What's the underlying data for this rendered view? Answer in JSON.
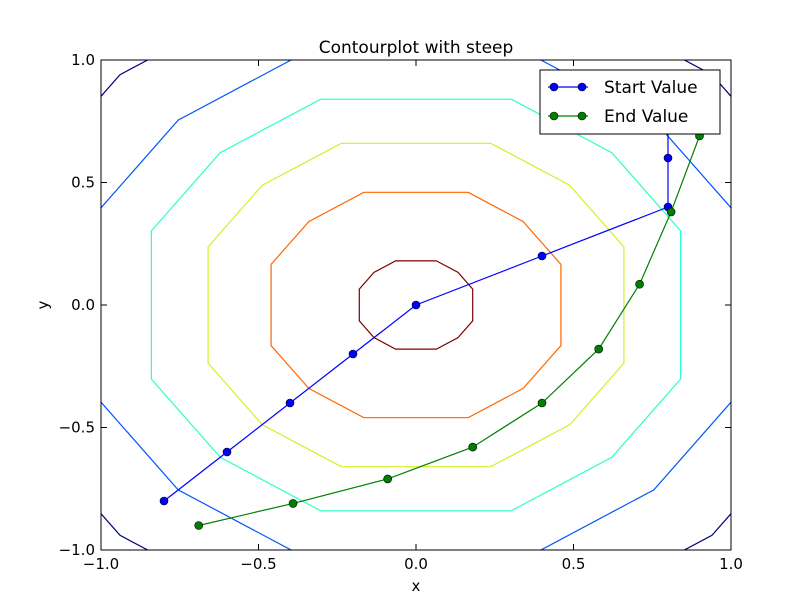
{
  "chart_data": {
    "type": "line",
    "title": "Contourplot with steep",
    "xlabel": "x",
    "ylabel": "y",
    "xlim": [
      -1.0,
      1.0
    ],
    "ylim": [
      -1.0,
      1.0
    ],
    "xticks": [
      -1.0,
      -0.5,
      0.0,
      0.5,
      1.0
    ],
    "yticks": [
      -1.0,
      -0.5,
      0.0,
      0.5,
      1.0
    ],
    "xtick_labels": [
      "−1.0",
      "−0.5",
      "0.0",
      "0.5",
      "1.0"
    ],
    "ytick_labels": [
      "−1.0",
      "−0.5",
      "0.0",
      "0.5",
      "1.0"
    ],
    "grid": false,
    "legend_position": "top-right",
    "series": [
      {
        "name": "Start Value",
        "color": "#0000ff",
        "marker": "circle",
        "x": [
          -0.8,
          -0.6,
          -0.4,
          -0.2,
          0.0,
          0.4,
          0.8,
          0.8,
          0.8
        ],
        "y": [
          -0.8,
          -0.6,
          -0.4,
          -0.2,
          0.0,
          0.2,
          0.4,
          0.6,
          0.93
        ]
      },
      {
        "name": "End Value",
        "color": "#008000",
        "marker": "circle",
        "x": [
          -0.69,
          -0.39,
          -0.09,
          0.18,
          0.4,
          0.58,
          0.71,
          0.81,
          0.9
        ],
        "y": [
          -0.9,
          -0.81,
          -0.71,
          -0.58,
          -0.4,
          -0.18,
          0.085,
          0.38,
          0.69
        ]
      }
    ],
    "contours": [
      {
        "radius": 0.18,
        "color": "#7f0000"
      },
      {
        "radius": 0.46,
        "color": "#ff6600"
      },
      {
        "radius": 0.66,
        "color": "#d4ef24"
      },
      {
        "radius": 0.84,
        "color": "#2affca"
      },
      {
        "radius": 1.02,
        "color": "#0055ff"
      },
      {
        "radius": 1.27,
        "color": "#00007f"
      }
    ]
  }
}
